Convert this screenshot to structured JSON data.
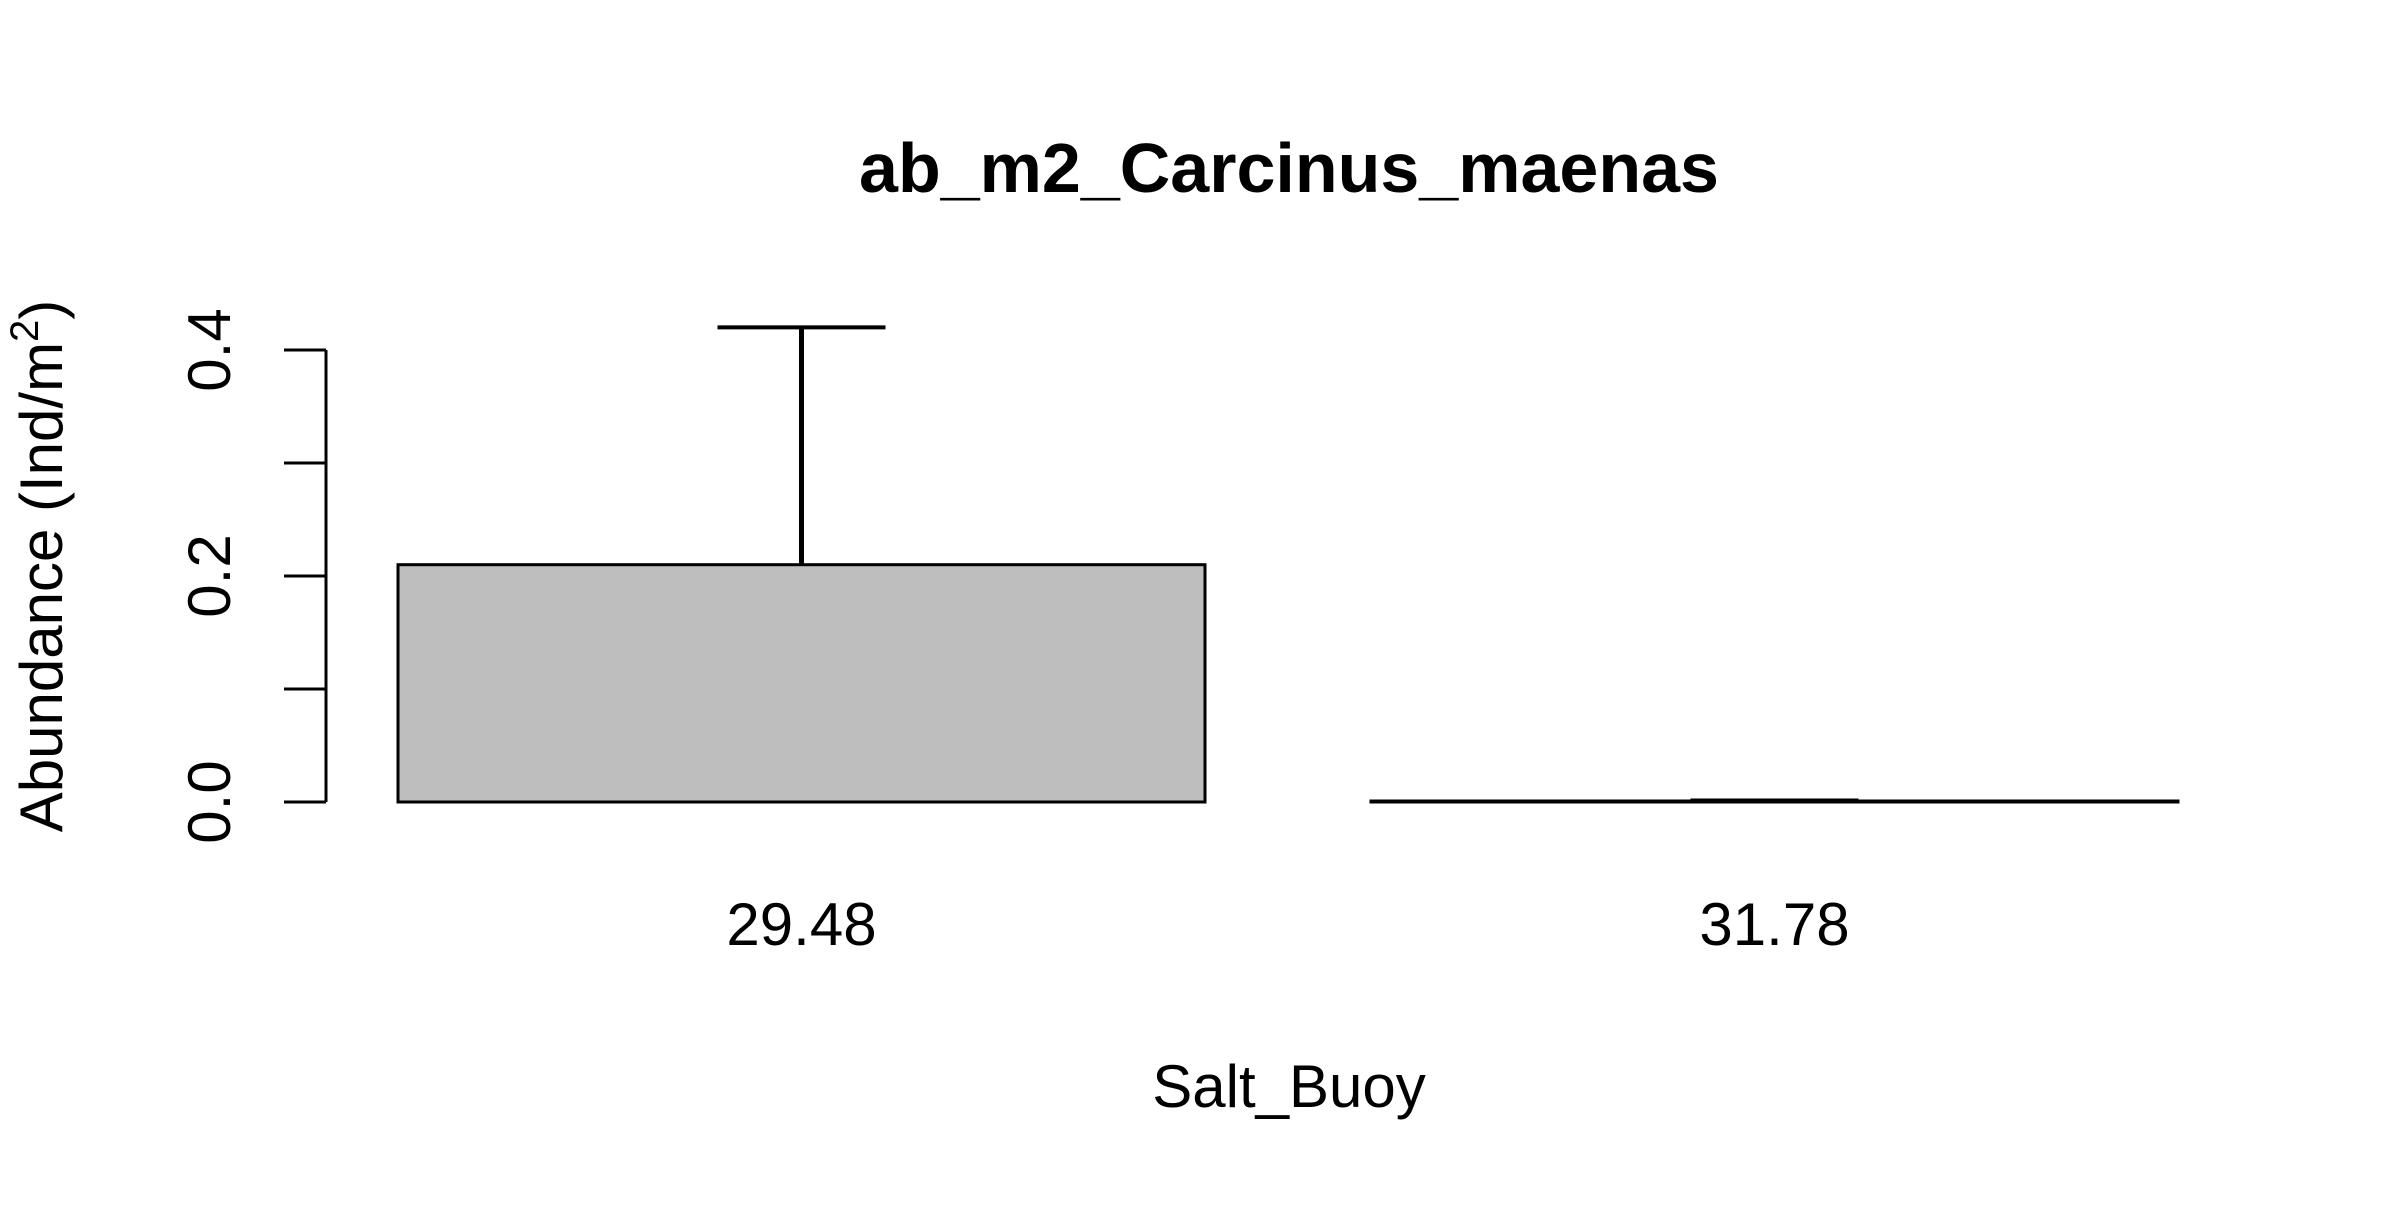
{
  "chart_data": {
    "type": "bar",
    "title": "ab_m2_Carcinus_maenas",
    "xlabel": "Salt_Buoy",
    "ylabel_main": "Abundance (Ind/m",
    "ylabel_sup": "2",
    "ylabel_close": ")",
    "categories": [
      "29.48",
      "31.78"
    ],
    "values": [
      0.21,
      0.0
    ],
    "error_upper": [
      0.42,
      0.0
    ],
    "ylim": [
      0,
      0.4
    ],
    "y_ticks": [
      0.0,
      0.1,
      0.2,
      0.3,
      0.4
    ],
    "y_tick_labels": [
      "0.0",
      "",
      "0.2",
      "",
      "0.4"
    ],
    "bar_color": "#bebebe",
    "grid": false,
    "legend": "none"
  }
}
